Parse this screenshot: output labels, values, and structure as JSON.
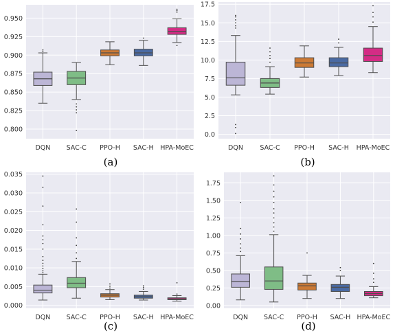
{
  "chart_data": [
    {
      "type": "box",
      "panel_label": "(a)",
      "categories": [
        "DQN",
        "SAC-C",
        "PPO-H",
        "SAC-H",
        "HPA-MoEC"
      ],
      "ylim": [
        0.787,
        0.968
      ],
      "yticks": [
        0.8,
        0.825,
        0.85,
        0.875,
        0.9,
        0.925,
        0.95
      ],
      "ytick_labels": [
        "0.800",
        "0.825",
        "0.850",
        "0.875",
        "0.900",
        "0.925",
        "0.950"
      ],
      "grid": true,
      "boxes": [
        {
          "q1": 0.859,
          "median": 0.868,
          "q3": 0.877,
          "whisker_low": 0.835,
          "whisker_high": 0.903,
          "outliers": [
            0.905,
            0.907
          ],
          "color": "#bcb6d6"
        },
        {
          "q1": 0.86,
          "median": 0.869,
          "q3": 0.878,
          "whisker_low": 0.84,
          "whisker_high": 0.89,
          "outliers": [
            0.834,
            0.83,
            0.826,
            0.822,
            0.798
          ],
          "color": "#7fbd86"
        },
        {
          "q1": 0.899,
          "median": 0.903,
          "q3": 0.907,
          "whisker_low": 0.887,
          "whisker_high": 0.918,
          "outliers": [],
          "color": "#cc7a35"
        },
        {
          "q1": 0.899,
          "median": 0.903,
          "q3": 0.908,
          "whisker_low": 0.886,
          "whisker_high": 0.92,
          "outliers": [
            0.923
          ],
          "color": "#4a6aa3"
        },
        {
          "q1": 0.928,
          "median": 0.932,
          "q3": 0.937,
          "whisker_low": 0.917,
          "whisker_high": 0.949,
          "outliers": [
            0.913,
            0.958,
            0.96,
            0.962
          ],
          "color": "#d42c85"
        }
      ]
    },
    {
      "type": "box",
      "panel_label": "(b)",
      "categories": [
        "DQN",
        "SAC-C",
        "PPO-H",
        "SAC-H",
        "HPA-MoEC"
      ],
      "ylim": [
        -0.6,
        17.8
      ],
      "yticks": [
        0.0,
        2.5,
        5.0,
        7.5,
        10.0,
        12.5,
        15.0,
        17.5
      ],
      "ytick_labels": [
        "0.0",
        "2.5",
        "5.0",
        "7.5",
        "10.0",
        "12.5",
        "15.0",
        "17.5"
      ],
      "grid": true,
      "boxes": [
        {
          "q1": 6.6,
          "median": 7.6,
          "q3": 9.7,
          "whisker_low": 5.3,
          "whisker_high": 13.3,
          "outliers": [
            0.1,
            0.9,
            1.3,
            14.3,
            14.6,
            15.0,
            15.4,
            15.8,
            16.0
          ],
          "color": "#bcb6d6"
        },
        {
          "q1": 6.3,
          "median": 6.9,
          "q3": 7.5,
          "whisker_low": 5.4,
          "whisker_high": 9.1,
          "outliers": [
            9.7,
            10.2,
            10.6,
            11.1,
            11.6
          ],
          "color": "#7fbd86"
        },
        {
          "q1": 9.0,
          "median": 9.6,
          "q3": 10.3,
          "whisker_low": 7.7,
          "whisker_high": 11.9,
          "outliers": [],
          "color": "#cc7a35"
        },
        {
          "q1": 9.1,
          "median": 9.6,
          "q3": 10.3,
          "whisker_low": 7.9,
          "whisker_high": 11.7,
          "outliers": [
            12.3,
            12.8
          ],
          "color": "#4a6aa3"
        },
        {
          "q1": 9.8,
          "median": 10.6,
          "q3": 11.6,
          "whisker_low": 8.3,
          "whisker_high": 14.5,
          "outliers": [
            15.1,
            15.8,
            16.4,
            17.3
          ],
          "color": "#d42c85"
        }
      ]
    },
    {
      "type": "box",
      "panel_label": "(c)",
      "categories": [
        "DQN",
        "SAC-C",
        "PPO-H",
        "SAC-H",
        "HPA-MoEC"
      ],
      "ylim": [
        -0.0008,
        0.0355
      ],
      "yticks": [
        0.0,
        0.005,
        0.01,
        0.015,
        0.02,
        0.025,
        0.03,
        0.035
      ],
      "ytick_labels": [
        "0.000",
        "0.005",
        "0.010",
        "0.015",
        "0.020",
        "0.025",
        "0.030",
        "0.035"
      ],
      "grid": true,
      "boxes": [
        {
          "q1": 0.0033,
          "median": 0.004,
          "q3": 0.0054,
          "whisker_low": 0.0014,
          "whisker_high": 0.0083,
          "outliers": [
            0.0087,
            0.0092,
            0.0098,
            0.0105,
            0.0112,
            0.012,
            0.013,
            0.015,
            0.0165,
            0.0175,
            0.0185,
            0.0215,
            0.0265,
            0.0315,
            0.0345
          ],
          "color": "#bcb6d6"
        },
        {
          "q1": 0.0047,
          "median": 0.0059,
          "q3": 0.0074,
          "whisker_low": 0.0019,
          "whisker_high": 0.0117,
          "outliers": [
            0.0125,
            0.014,
            0.016,
            0.018,
            0.0222,
            0.0257
          ],
          "color": "#7fbd86"
        },
        {
          "q1": 0.0022,
          "median": 0.0027,
          "q3": 0.0031,
          "whisker_low": 0.0015,
          "whisker_high": 0.0042,
          "outliers": [
            0.0046,
            0.0051,
            0.0057
          ],
          "color": "#cc7a35"
        },
        {
          "q1": 0.0019,
          "median": 0.0023,
          "q3": 0.0027,
          "whisker_low": 0.0014,
          "whisker_high": 0.0037,
          "outliers": [
            0.0043,
            0.0048,
            0.0052
          ],
          "color": "#4a6aa3"
        },
        {
          "q1": 0.0015,
          "median": 0.0017,
          "q3": 0.002,
          "whisker_low": 0.0011,
          "whisker_high": 0.0026,
          "outliers": [
            0.003,
            0.006
          ],
          "color": "#d42c85"
        }
      ]
    },
    {
      "type": "box",
      "panel_label": "(d)",
      "categories": [
        "DQN",
        "SAC-C",
        "PPO-H",
        "SAC-H",
        "HPA-MoEC"
      ],
      "ylim": [
        -0.04,
        1.9
      ],
      "yticks": [
        0.0,
        0.25,
        0.5,
        0.75,
        1.0,
        1.25,
        1.5,
        1.75
      ],
      "ytick_labels": [
        "0.00",
        "0.25",
        "0.50",
        "0.75",
        "1.00",
        "1.25",
        "1.50",
        "1.75"
      ],
      "grid": true,
      "boxes": [
        {
          "q1": 0.26,
          "median": 0.34,
          "q3": 0.45,
          "whisker_low": 0.08,
          "whisker_high": 0.71,
          "outliers": [
            0.77,
            0.82,
            0.88,
            0.95,
            1.02,
            1.1,
            1.47
          ],
          "color": "#bcb6d6"
        },
        {
          "q1": 0.23,
          "median": 0.35,
          "q3": 0.55,
          "whisker_low": 0.05,
          "whisker_high": 1.01,
          "outliers": [
            1.06,
            1.12,
            1.18,
            1.25,
            1.32,
            1.38,
            1.47,
            1.55,
            1.63,
            1.72,
            1.85
          ],
          "color": "#7fbd86"
        },
        {
          "q1": 0.22,
          "median": 0.28,
          "q3": 0.32,
          "whisker_low": 0.1,
          "whisker_high": 0.43,
          "outliers": [
            0.75
          ],
          "color": "#cc7a35"
        },
        {
          "q1": 0.2,
          "median": 0.26,
          "q3": 0.3,
          "whisker_low": 0.1,
          "whisker_high": 0.42,
          "outliers": [
            0.5,
            0.54
          ],
          "color": "#4a6aa3"
        },
        {
          "q1": 0.14,
          "median": 0.17,
          "q3": 0.2,
          "whisker_low": 0.11,
          "whisker_high": 0.27,
          "outliers": [
            0.33,
            0.38,
            0.46,
            0.6
          ],
          "color": "#d42c85"
        }
      ]
    }
  ]
}
